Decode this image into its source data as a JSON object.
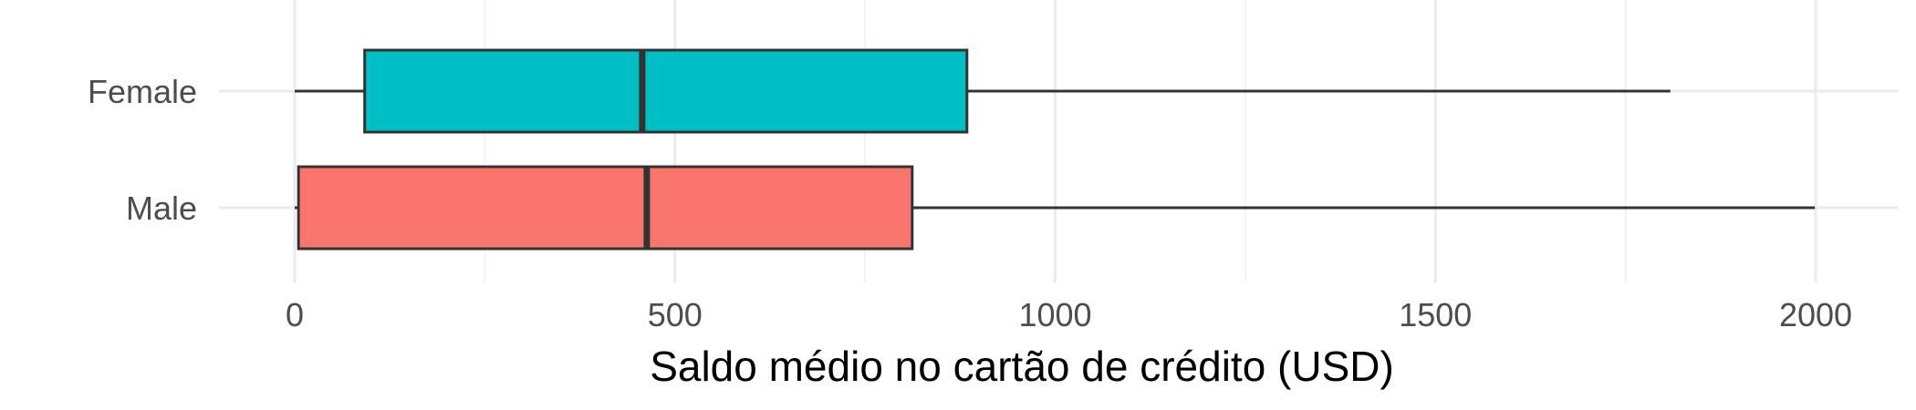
{
  "chart_data": {
    "type": "boxplot",
    "orientation": "horizontal",
    "xlabel": "Saldo médio no cartão de crédito (USD)",
    "ylabel": "",
    "xlim": [
      -100,
      2100
    ],
    "x_ticks": [
      "0",
      "500",
      "1000",
      "1500",
      "2000"
    ],
    "x_tick_values": [
      0,
      500,
      1000,
      1500,
      2000
    ],
    "grid": true,
    "legend": "none",
    "categories": [
      "Female",
      "Male"
    ],
    "series": [
      {
        "category": "Female",
        "min": 0,
        "q1": 92,
        "median": 457,
        "q3": 884,
        "max": 1809,
        "color": "#00BFC4"
      },
      {
        "category": "Male",
        "min": 0,
        "q1": 5,
        "median": 463,
        "q3": 812,
        "max": 1999,
        "color": "#F8766D"
      }
    ]
  }
}
